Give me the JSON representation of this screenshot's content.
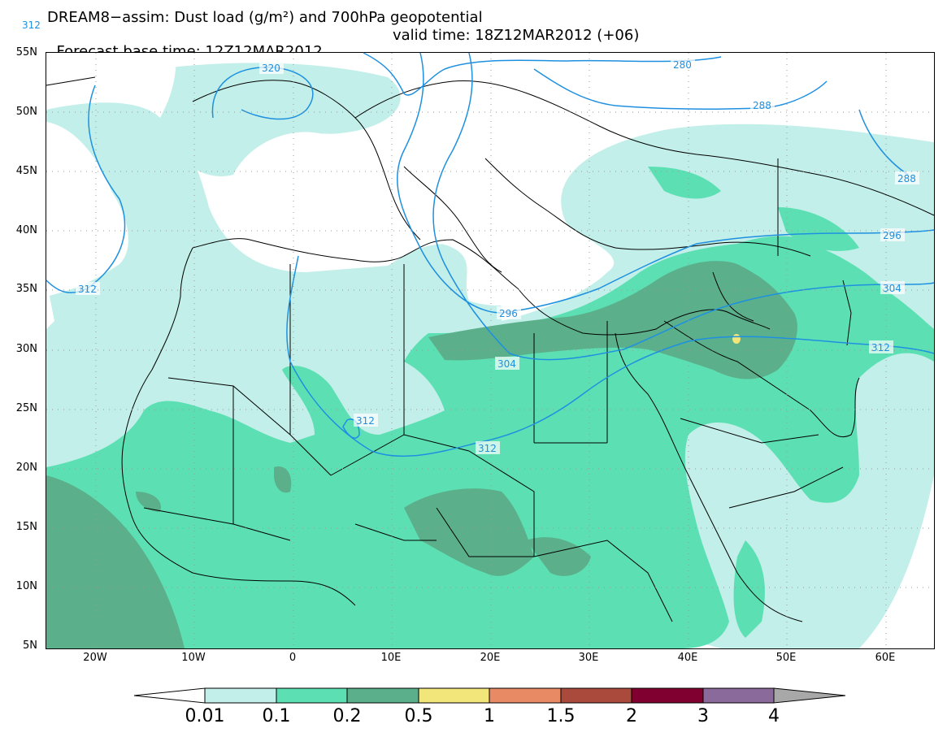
{
  "title": {
    "line1": "DREAM8−assim: Dust load (g/m²) and 700hPa geopotential",
    "forecast_base": "Forecast base time: 12Z12MAR2012",
    "valid_time": "valid time: 18Z12MAR2012 (+06)"
  },
  "axes": {
    "y_labels": [
      "55N",
      "50N",
      "45N",
      "40N",
      "35N",
      "30N",
      "25N",
      "20N",
      "15N",
      "10N",
      "5N"
    ],
    "x_labels": [
      "20W",
      "10W",
      "0",
      "10E",
      "20E",
      "30E",
      "40E",
      "50E",
      "60E"
    ]
  },
  "contour_labels": [
    "320",
    "280",
    "288",
    "288",
    "296",
    "304",
    "312",
    "296",
    "304",
    "312",
    "312",
    "312",
    "312"
  ],
  "colorbar": {
    "labels": [
      "0.01",
      "0.1",
      "0.2",
      "0.5",
      "1",
      "1.5",
      "2",
      "3",
      "4"
    ],
    "colors": [
      "#ffffff",
      "#c2efe9",
      "#5ce0b3",
      "#5bb08b",
      "#f2e57a",
      "#e88a64",
      "#aa4a3c",
      "#800030",
      "#8a6a9a",
      "#a8a8a8"
    ]
  },
  "colors": {
    "contour_line": "#1e90e0",
    "border_line": "#000000"
  }
}
